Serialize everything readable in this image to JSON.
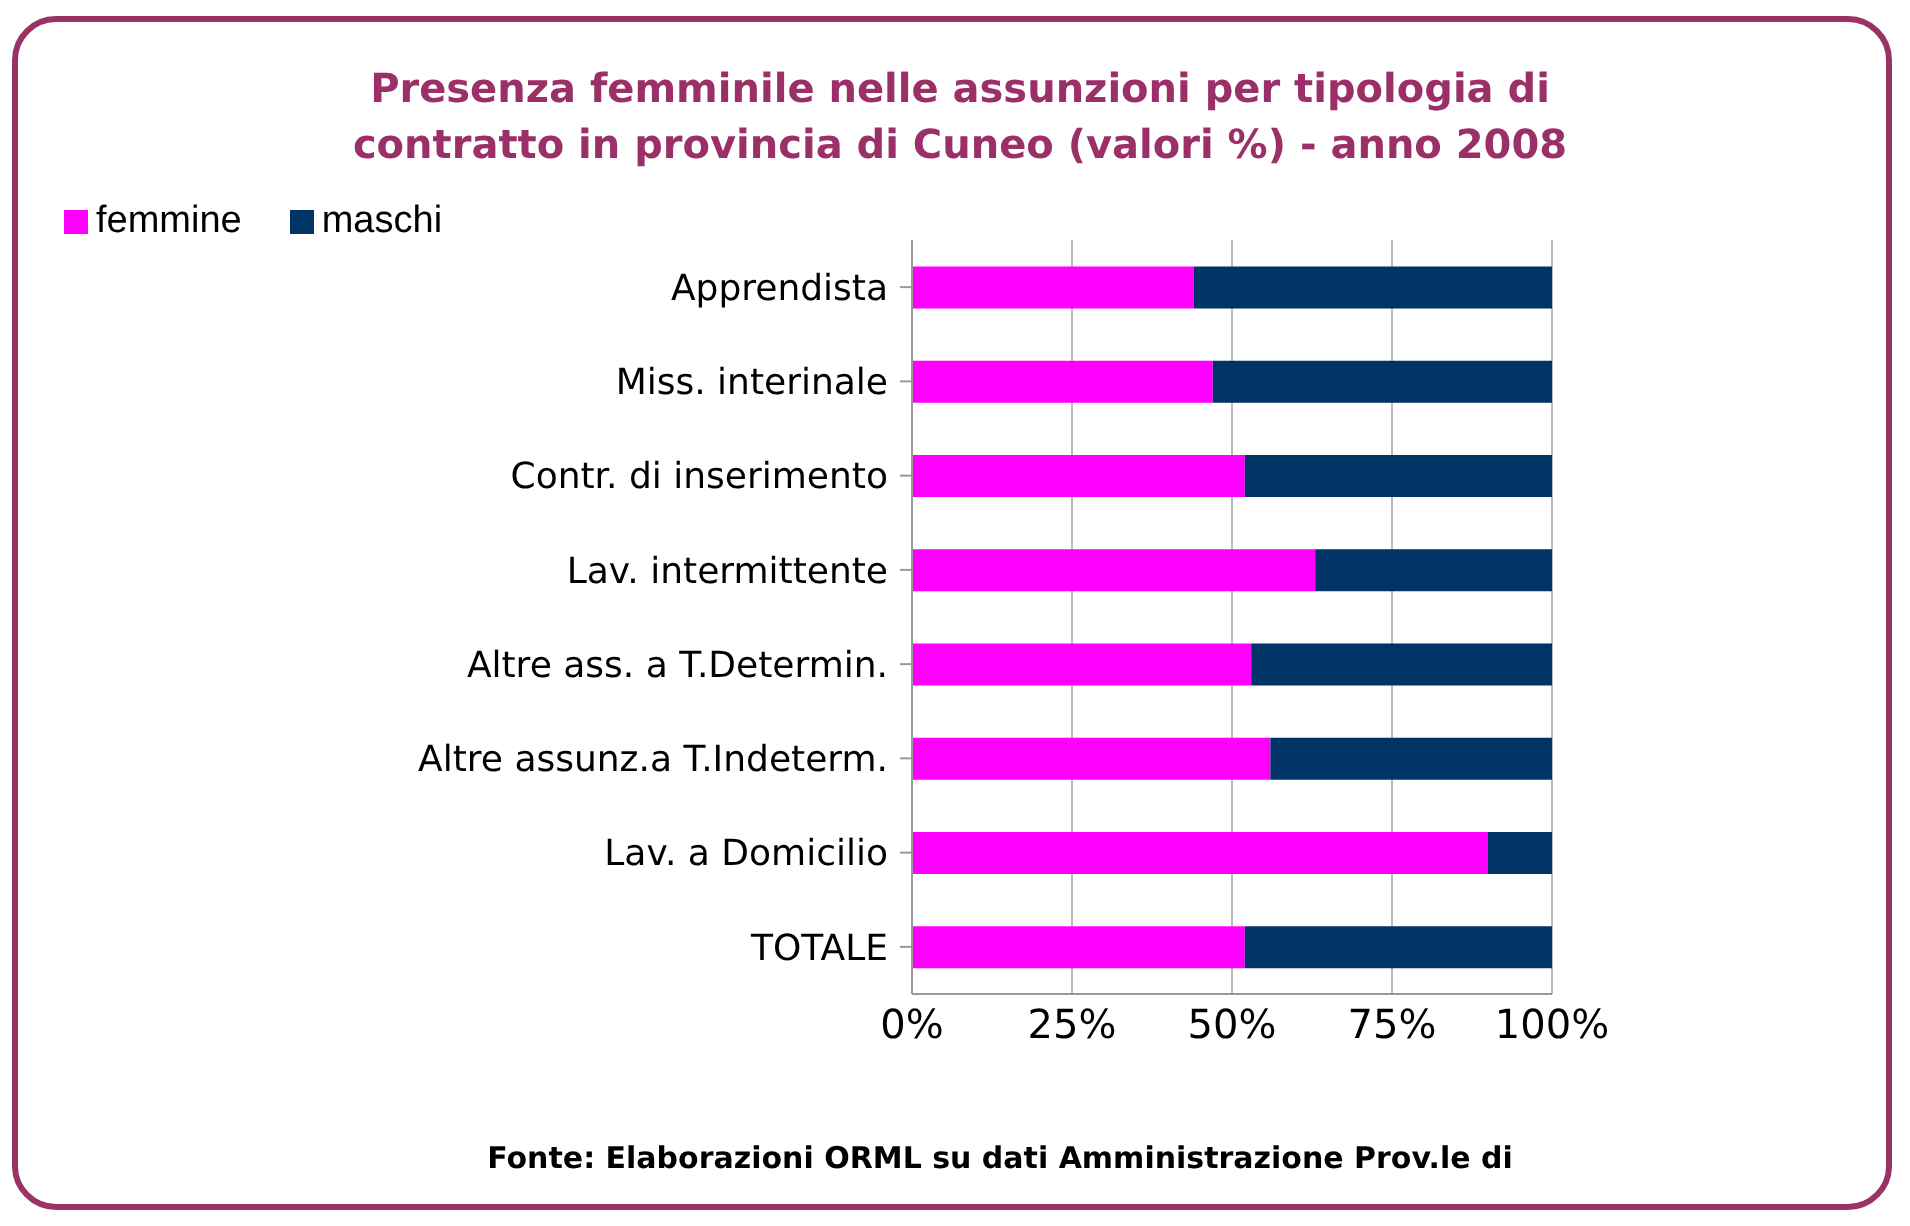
{
  "chart_data": {
    "type": "bar",
    "orientation": "horizontal",
    "stacked": true,
    "title": "Presenza femminile nelle assunzioni per tipologia di contratto in provincia di Cuneo (valori %) - anno 2008",
    "categories": [
      "Apprendista",
      "Miss. interinale",
      "Contr. di inserimento",
      "Lav. intermittente",
      "Altre ass. a T.Determin.",
      "Altre assunz.a T.Indeterm.",
      "Lav. a Domicilio",
      "TOTALE"
    ],
    "series": [
      {
        "name": "femmine",
        "color": "#ff00ff",
        "values": [
          44,
          47,
          52,
          63,
          53,
          56,
          90,
          52
        ]
      },
      {
        "name": "maschi",
        "color": "#003366",
        "values": [
          56,
          53,
          48,
          37,
          47,
          44,
          10,
          48
        ]
      }
    ],
    "xlim": [
      0,
      100
    ],
    "xticks": [
      {
        "value": 0,
        "label": "0%"
      },
      {
        "value": 25,
        "label": "25%"
      },
      {
        "value": 50,
        "label": "50%"
      },
      {
        "value": 75,
        "label": "75%"
      },
      {
        "value": 100,
        "label": "100%"
      }
    ],
    "grid": "x",
    "legend": "top left",
    "annotations": [
      "Fonte: Elaborazioni ORML su dati Amministrazione Prov.le di"
    ]
  }
}
